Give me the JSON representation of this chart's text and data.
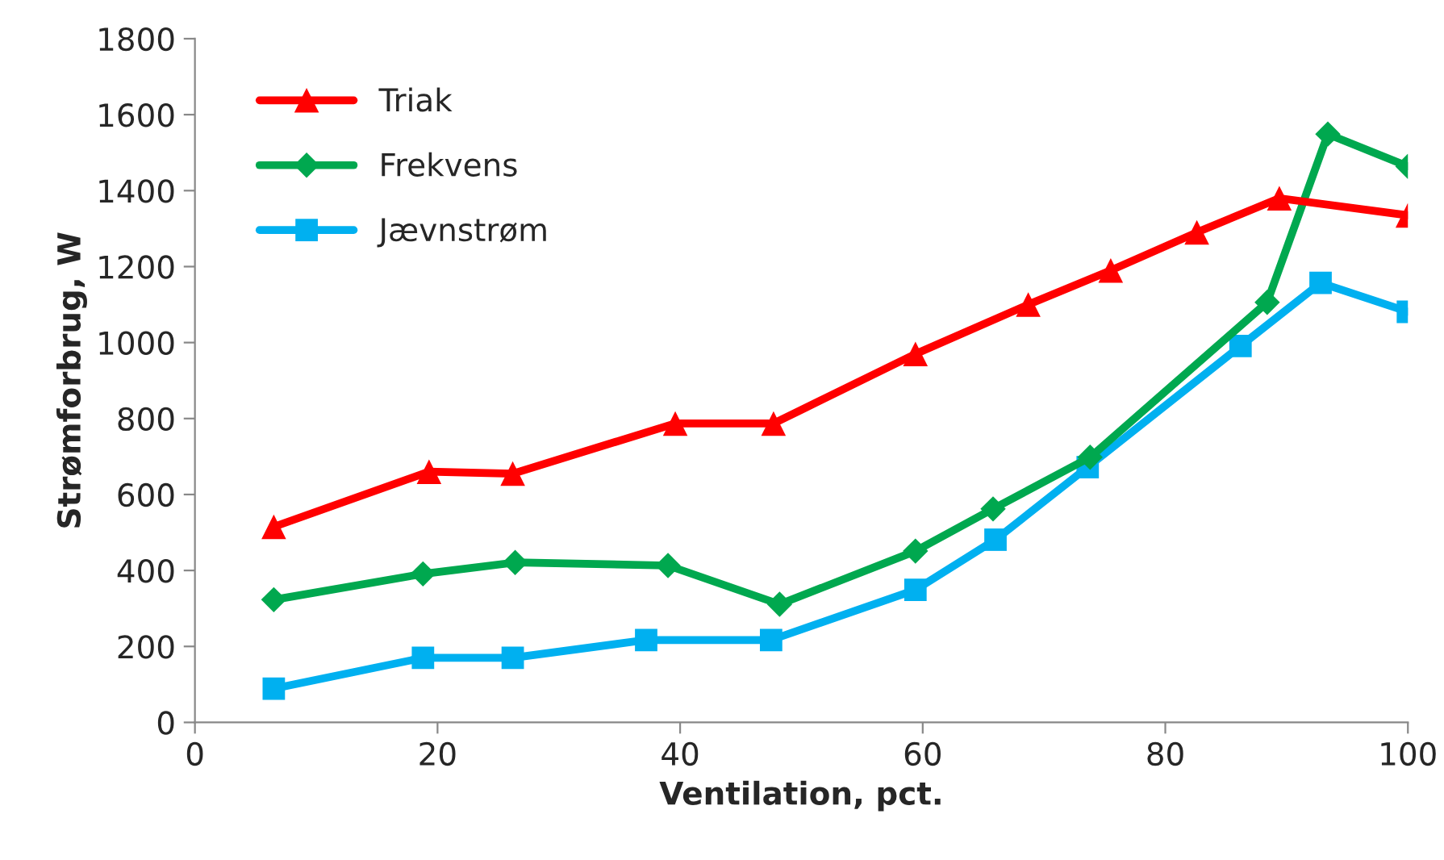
{
  "chart_data": {
    "type": "line",
    "xlabel": "Ventilation, pct.",
    "ylabel": "Strømforbrug, W",
    "xlim": [
      0,
      100
    ],
    "xticks": [
      0,
      20,
      40,
      60,
      80,
      100
    ],
    "ylim": [
      0,
      1800
    ],
    "yticks": [
      0,
      200,
      400,
      600,
      800,
      1000,
      1200,
      1400,
      1600,
      1800
    ],
    "grid": false,
    "legend": "top left",
    "line_style": "solid",
    "series": [
      {
        "name": "Triak",
        "color": "#ff0000",
        "marker": "triangle",
        "x": [
          6.5,
          19.3,
          26.2,
          39.6,
          47.7,
          59.4,
          68.7,
          75.5,
          82.6,
          89.4,
          100
        ],
        "values": [
          515,
          660,
          655,
          787,
          787,
          970,
          1100,
          1190,
          1290,
          1380,
          1335
        ]
      },
      {
        "name": "Frekvens",
        "color": "#00a84f",
        "marker": "diamond",
        "x": [
          6.5,
          18.8,
          26.4,
          39.0,
          48.2,
          59.4,
          65.8,
          73.8,
          88.4,
          93.4,
          100
        ],
        "values": [
          323,
          391,
          421,
          413,
          311,
          451,
          562,
          698,
          1106,
          1549,
          1464
        ]
      },
      {
        "name": "Jævnstrøm",
        "color": "#00b0f0",
        "marker": "square",
        "x": [
          6.5,
          18.8,
          26.2,
          37.2,
          47.5,
          59.4,
          66.0,
          73.6,
          86.2,
          92.8,
          100
        ],
        "values": [
          89,
          170,
          170,
          217,
          217,
          349,
          481,
          672,
          991,
          1157,
          1081
        ]
      }
    ]
  }
}
